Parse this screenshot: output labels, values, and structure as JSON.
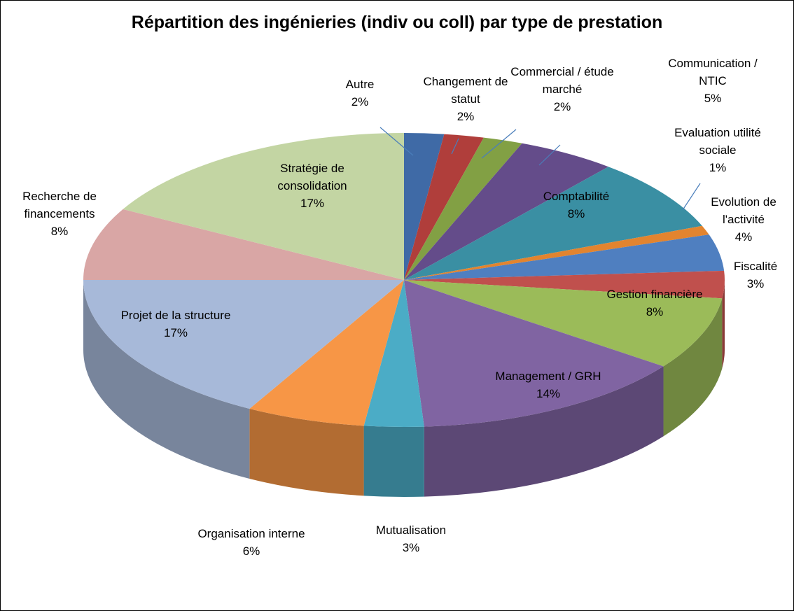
{
  "chart_data": {
    "type": "pie3d",
    "title": "Répartition des ingénieries (indiv ou coll) par type de prestation",
    "categories": [
      "Autre",
      "Changement de statut",
      "Commercial / étude marché",
      "Communication / NTIC",
      "Comptabilité",
      "Evaluation utilité sociale",
      "Evolution de l'activité",
      "Fiscalité",
      "Gestion financière",
      "Management / GRH",
      "Mutualisation",
      "Organisation interne",
      "Projet de la structure",
      "Recherche de financements",
      "Stratégie de consolidation"
    ],
    "values": [
      2,
      2,
      2,
      5,
      8,
      1,
      4,
      3,
      8,
      14,
      3,
      6,
      17,
      8,
      17
    ],
    "value_labels": [
      "2%",
      "2%",
      "2%",
      "5%",
      "8%",
      "1%",
      "4%",
      "3%",
      "8%",
      "14%",
      "3%",
      "6%",
      "17%",
      "8%",
      "17%"
    ],
    "colors": [
      "#3f6aa6",
      "#b03e3b",
      "#82a044",
      "#644c8a",
      "#3a8fa3",
      "#e2842f",
      "#4f7fc0",
      "#c0504d",
      "#9bbb59",
      "#8064a2",
      "#4bacc6",
      "#f79646",
      "#a7b9d9",
      "#d9a6a5",
      "#c3d5a3"
    ]
  }
}
